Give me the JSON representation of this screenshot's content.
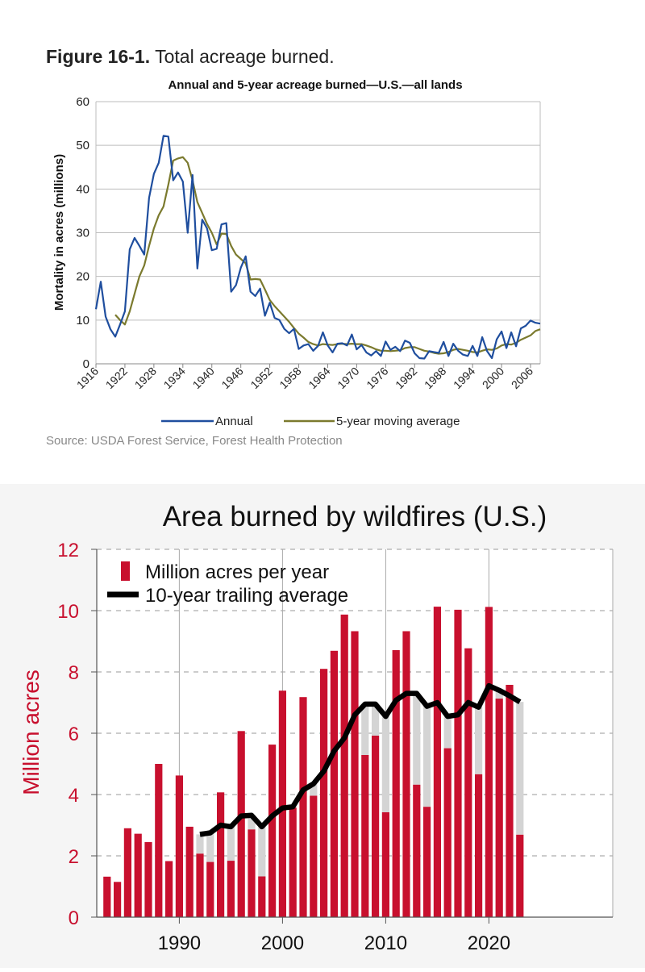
{
  "figure": {
    "label": "Figure 16-1.",
    "caption": "Total acreage burned.",
    "source": "Source: USDA Forest Service, Forest Health Protection"
  },
  "chart_data": [
    {
      "type": "line",
      "title": "Annual and 5-year acreage burned—U.S.—all lands",
      "xlabel": "",
      "ylabel": "Mortality in acres (millions)",
      "xlim": [
        1916,
        2008
      ],
      "ylim": [
        0,
        60
      ],
      "yticks": [
        0,
        10,
        20,
        30,
        40,
        50,
        60
      ],
      "xticks": [
        1916,
        1922,
        1928,
        1934,
        1940,
        1946,
        1952,
        1958,
        1964,
        1970,
        1976,
        1982,
        1988,
        1994,
        2000,
        2006
      ],
      "grid": true,
      "legend": "bottom",
      "series": [
        {
          "name": "Annual",
          "color": "#1f4e9e",
          "x": [
            1916,
            1917,
            1918,
            1919,
            1920,
            1921,
            1922,
            1923,
            1924,
            1925,
            1926,
            1927,
            1928,
            1929,
            1930,
            1931,
            1932,
            1933,
            1934,
            1935,
            1936,
            1937,
            1938,
            1939,
            1940,
            1941,
            1942,
            1943,
            1944,
            1945,
            1946,
            1947,
            1948,
            1949,
            1950,
            1951,
            1952,
            1953,
            1954,
            1955,
            1956,
            1957,
            1958,
            1959,
            1960,
            1961,
            1962,
            1963,
            1964,
            1965,
            1966,
            1967,
            1968,
            1969,
            1970,
            1971,
            1972,
            1973,
            1974,
            1975,
            1976,
            1977,
            1978,
            1979,
            1980,
            1981,
            1982,
            1983,
            1984,
            1985,
            1986,
            1987,
            1988,
            1989,
            1990,
            1991,
            1992,
            1993,
            1994,
            1995,
            1996,
            1997,
            1998,
            1999,
            2000,
            2001,
            2002,
            2003,
            2004,
            2005,
            2006,
            2007,
            2008
          ],
          "y": [
            12.5,
            18.8,
            10.8,
            7.9,
            6.2,
            9.0,
            12.0,
            26.2,
            28.8,
            27.0,
            25.0,
            38.0,
            43.5,
            46.0,
            52.2,
            52.0,
            42.0,
            43.8,
            41.7,
            30.0,
            43.2,
            21.8,
            33.0,
            31.0,
            26.0,
            26.3,
            31.9,
            32.2,
            16.5,
            18.0,
            22.0,
            24.6,
            16.5,
            15.5,
            17.2,
            11.0,
            14.0,
            10.5,
            10.0,
            8.0,
            7.0,
            8.0,
            3.4,
            4.2,
            4.5,
            3.0,
            4.1,
            7.2,
            4.2,
            2.6,
            4.6,
            4.7,
            4.2,
            6.7,
            3.3,
            4.3,
            2.6,
            1.9,
            2.9,
            1.8,
            5.1,
            3.2,
            3.9,
            2.9,
            5.3,
            4.8,
            2.4,
            1.3,
            1.2,
            2.9,
            2.7,
            2.5,
            5.0,
            1.8,
            4.6,
            3.0,
            2.1,
            1.8,
            4.1,
            1.8,
            6.1,
            2.9,
            1.3,
            5.6,
            7.4,
            3.6,
            7.2,
            4.0,
            8.1,
            8.7,
            9.9,
            9.4,
            9.2
          ]
        },
        {
          "name": "5-year moving average",
          "color": "#7b7a2e",
          "x": [
            1920,
            1921,
            1922,
            1923,
            1924,
            1925,
            1926,
            1927,
            1928,
            1929,
            1930,
            1931,
            1932,
            1933,
            1934,
            1935,
            1936,
            1937,
            1938,
            1939,
            1940,
            1941,
            1942,
            1943,
            1944,
            1945,
            1946,
            1947,
            1948,
            1949,
            1950,
            1951,
            1952,
            1953,
            1954,
            1955,
            1956,
            1957,
            1958,
            1959,
            1960,
            1961,
            1962,
            1963,
            1964,
            1965,
            1966,
            1967,
            1968,
            1969,
            1970,
            1971,
            1972,
            1973,
            1974,
            1975,
            1976,
            1977,
            1978,
            1979,
            1980,
            1981,
            1982,
            1983,
            1984,
            1985,
            1986,
            1987,
            1988,
            1989,
            1990,
            1991,
            1992,
            1993,
            1994,
            1995,
            1996,
            1997,
            1998,
            1999,
            2000,
            2001,
            2002,
            2003,
            2004,
            2005,
            2006,
            2007,
            2008
          ],
          "y": [
            11.2,
            10.0,
            9.0,
            12.0,
            16.0,
            20.0,
            22.5,
            27.0,
            31.0,
            34.0,
            36.0,
            41.0,
            46.5,
            47.0,
            47.3,
            46.0,
            42.0,
            37.0,
            34.5,
            32.0,
            30.0,
            27.3,
            29.8,
            29.7,
            27.0,
            25.0,
            24.0,
            23.0,
            19.3,
            19.4,
            19.3,
            17.0,
            14.6,
            13.2,
            12.0,
            10.8,
            9.6,
            8.2,
            6.9,
            6.0,
            5.0,
            4.5,
            4.2,
            4.5,
            4.4,
            4.3,
            4.5,
            4.6,
            4.5,
            4.6,
            4.5,
            4.5,
            4.2,
            3.8,
            3.3,
            3.0,
            3.0,
            2.9,
            3.0,
            3.1,
            3.6,
            3.8,
            3.8,
            3.4,
            3.0,
            2.8,
            2.5,
            2.3,
            2.4,
            2.7,
            3.2,
            3.4,
            3.2,
            3.0,
            2.7,
            2.6,
            3.0,
            3.3,
            3.2,
            3.5,
            4.2,
            4.5,
            4.4,
            4.8,
            5.5,
            6.0,
            6.5,
            7.5,
            7.9
          ]
        }
      ]
    },
    {
      "type": "bar",
      "title": "Area burned by wildfires (U.S.)",
      "xlabel": "",
      "ylabel": "Million acres",
      "xlim": [
        1982,
        2032
      ],
      "ylim": [
        0,
        12
      ],
      "yticks": [
        0,
        2,
        4,
        6,
        8,
        10,
        12
      ],
      "xticks": [
        1990,
        2000,
        2010,
        2020
      ],
      "grid": true,
      "legend": "top-left",
      "colors": {
        "bar": "#c8102e",
        "avg": "#000000",
        "fill": "#d4d4d4",
        "axis_text": "#c8102e"
      },
      "series": [
        {
          "name": "Million acres per year",
          "x": [
            1983,
            1984,
            1985,
            1986,
            1987,
            1988,
            1989,
            1990,
            1991,
            1992,
            1993,
            1994,
            1995,
            1996,
            1997,
            1998,
            1999,
            2000,
            2001,
            2002,
            2003,
            2004,
            2005,
            2006,
            2007,
            2008,
            2009,
            2010,
            2011,
            2012,
            2013,
            2014,
            2015,
            2016,
            2017,
            2018,
            2019,
            2020,
            2021,
            2022,
            2023
          ],
          "values": [
            1.32,
            1.15,
            2.9,
            2.72,
            2.45,
            5.0,
            1.83,
            4.62,
            2.95,
            2.07,
            1.8,
            4.07,
            1.84,
            6.07,
            2.86,
            1.33,
            5.63,
            7.39,
            3.57,
            7.18,
            3.96,
            8.1,
            8.69,
            9.87,
            9.33,
            5.29,
            5.92,
            3.42,
            8.71,
            9.33,
            4.32,
            3.6,
            10.13,
            5.51,
            10.03,
            8.77,
            4.66,
            10.12,
            7.13,
            7.58,
            2.69
          ]
        },
        {
          "name": "10-year trailing average",
          "x": [
            1992,
            1993,
            1994,
            1995,
            1996,
            1997,
            1998,
            1999,
            2000,
            2001,
            2002,
            2003,
            2004,
            2005,
            2006,
            2007,
            2008,
            2009,
            2010,
            2011,
            2012,
            2013,
            2014,
            2015,
            2016,
            2017,
            2018,
            2019,
            2020,
            2021,
            2022,
            2023
          ],
          "values": [
            2.7,
            2.75,
            3.0,
            2.95,
            3.3,
            3.32,
            2.95,
            3.3,
            3.56,
            3.6,
            4.15,
            4.35,
            4.76,
            5.42,
            5.85,
            6.6,
            6.95,
            6.95,
            6.55,
            7.08,
            7.3,
            7.3,
            6.88,
            7.0,
            6.55,
            6.6,
            7.0,
            6.85,
            7.55,
            7.4,
            7.22,
            7.02
          ]
        }
      ]
    }
  ]
}
